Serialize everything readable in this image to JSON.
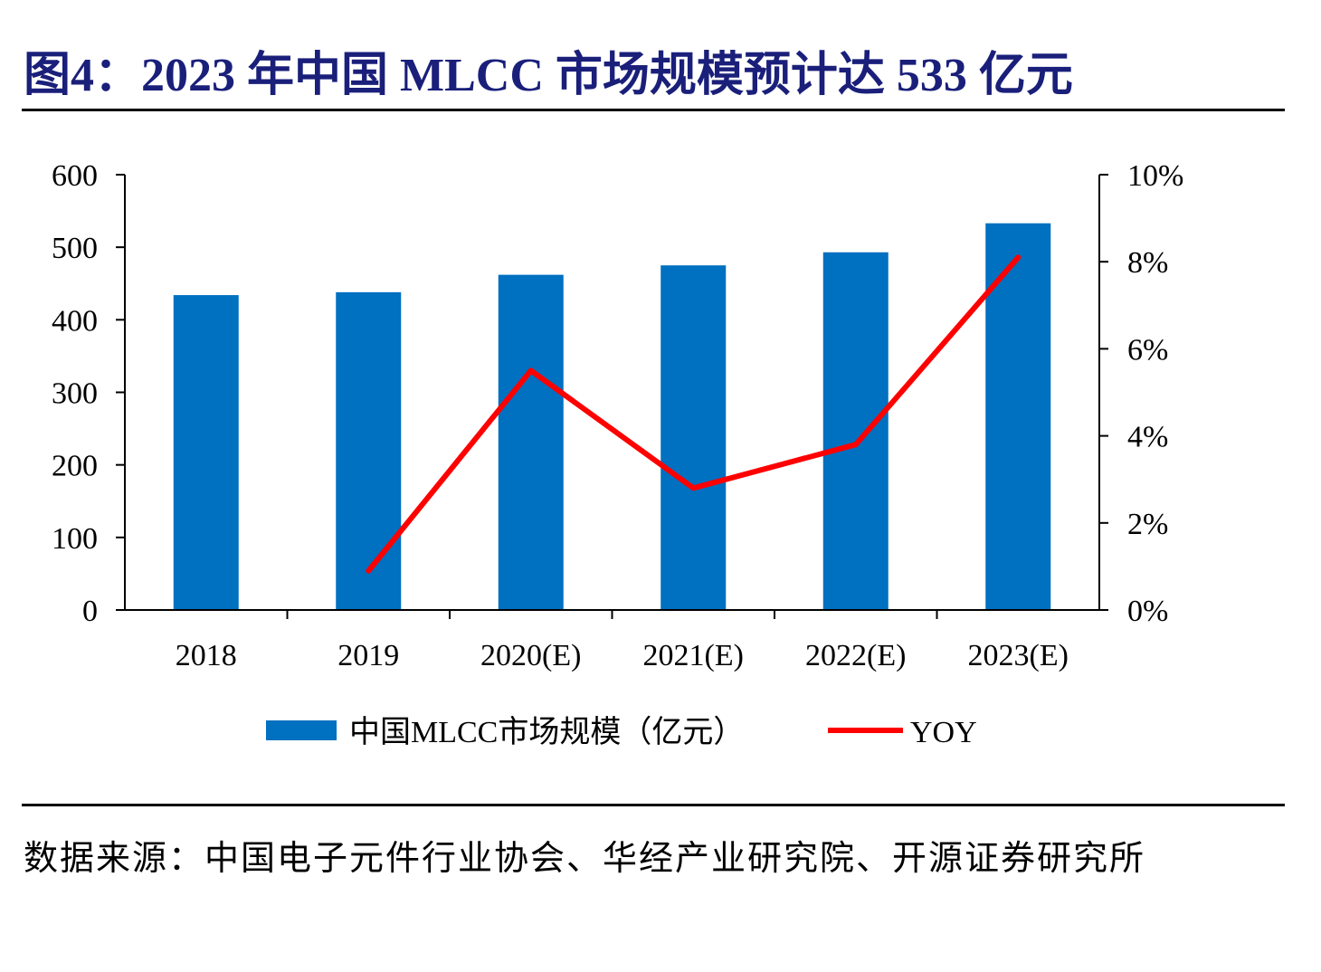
{
  "title": "图4：2023 年中国 MLCC 市场规模预计达 533 亿元",
  "source": "数据来源：中国电子元件行业协会、华经产业研究院、开源证券研究所",
  "colors": {
    "bar": "#0070c0",
    "line": "#ff0000",
    "title": "#1a1f7a"
  },
  "chart_data": {
    "type": "bar+line",
    "categories": [
      "2018",
      "2019",
      "2020(E)",
      "2021(E)",
      "2022(E)",
      "2023(E)"
    ],
    "series": [
      {
        "name": "中国MLCC市场规模（亿元）",
        "type": "bar",
        "axis": "left",
        "values": [
          434,
          438,
          462,
          475,
          493,
          533
        ]
      },
      {
        "name": "YOY",
        "type": "line",
        "axis": "right",
        "values": [
          null,
          0.9,
          5.5,
          2.8,
          3.8,
          8.1
        ]
      }
    ],
    "y_left": {
      "min": 0,
      "max": 600,
      "ticks": [
        0,
        100,
        200,
        300,
        400,
        500,
        600
      ]
    },
    "y_right": {
      "min": 0,
      "max": 10,
      "ticks": [
        "0%",
        "2%",
        "4%",
        "6%",
        "8%",
        "10%"
      ]
    },
    "legend": "bottom"
  }
}
